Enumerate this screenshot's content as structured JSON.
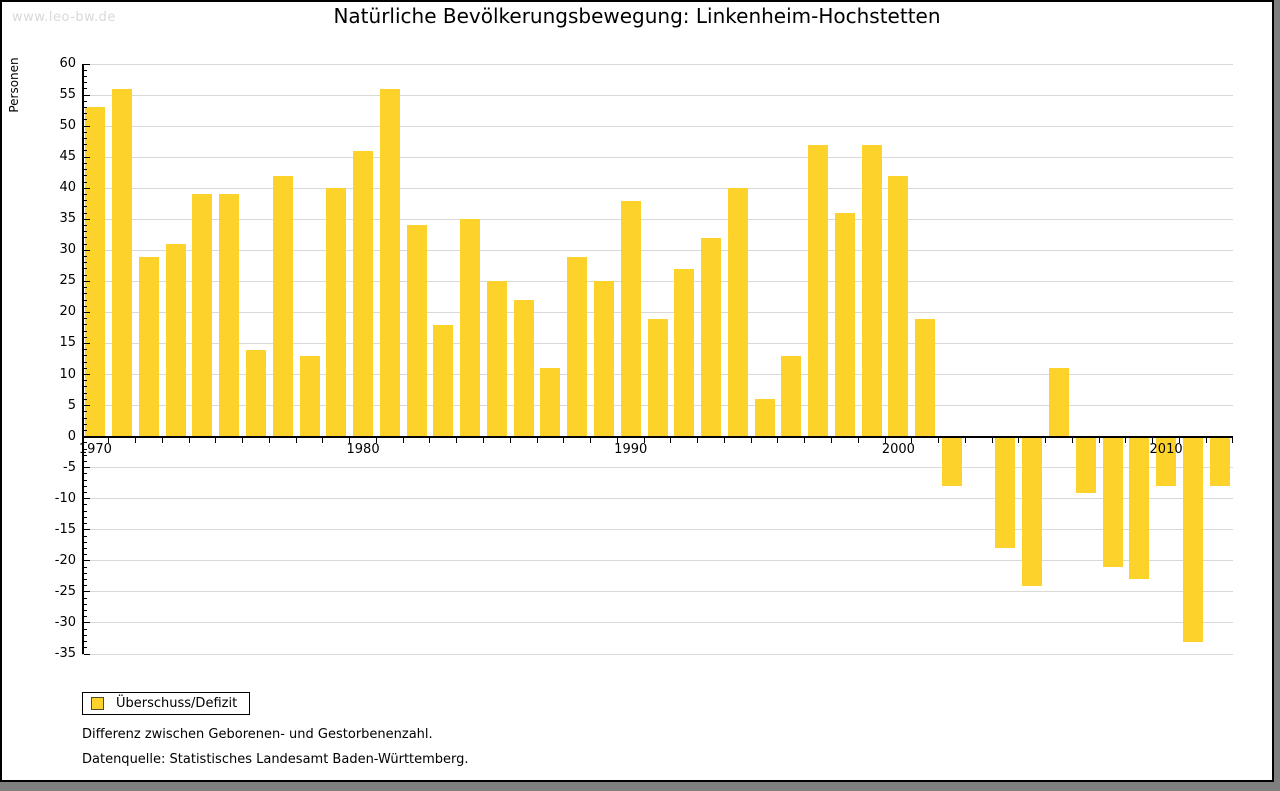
{
  "watermark": "www.leo-bw.de",
  "chart_data": {
    "type": "bar",
    "title": "Natürliche Bevölkerungsbewegung: Linkenheim-Hochstetten",
    "ylabel": "Personen",
    "legend_label": "Überschuss/Defizit",
    "legend_position": "bottom-left",
    "grid": "horizontal",
    "ylim": [
      -35,
      60
    ],
    "ytick_step": 5,
    "ytick_minor_step": 1,
    "xtick_labels": [
      "1970",
      "1980",
      "1990",
      "2000",
      "2010"
    ],
    "bar_color": "#FCD22B",
    "gridline_color": "#d9d9d9",
    "years": [
      1970,
      1971,
      1972,
      1973,
      1974,
      1975,
      1976,
      1977,
      1978,
      1979,
      1980,
      1981,
      1982,
      1983,
      1984,
      1985,
      1986,
      1987,
      1988,
      1989,
      1990,
      1991,
      1992,
      1993,
      1994,
      1995,
      1996,
      1997,
      1998,
      1999,
      2000,
      2001,
      2002,
      2003,
      2004,
      2005,
      2006,
      2007,
      2008,
      2009,
      2010,
      2011,
      2012
    ],
    "values": [
      53,
      56,
      29,
      31,
      39,
      39,
      14,
      42,
      13,
      40,
      46,
      56,
      34,
      18,
      35,
      25,
      22,
      11,
      29,
      25,
      38,
      19,
      27,
      32,
      40,
      6,
      13,
      47,
      36,
      47,
      42,
      19,
      -8,
      0,
      -18,
      -24,
      11,
      -9,
      -21,
      -23,
      -8,
      -33,
      -8
    ]
  },
  "notes": {
    "line1": "Differenz zwischen Geborenen- und Gestorbenenzahl.",
    "line2": "Datenquelle: Statistisches Landesamt Baden-Württemberg."
  }
}
